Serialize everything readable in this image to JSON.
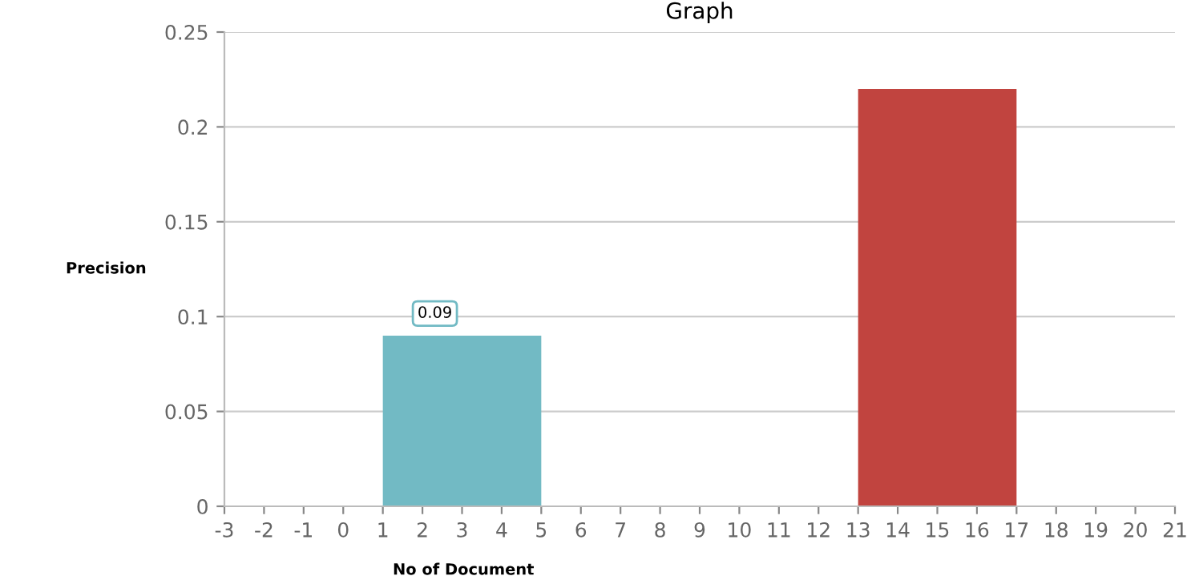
{
  "chart_data": {
    "type": "histogram",
    "title": "Graph",
    "xlabel": "No of Document",
    "ylabel": "Precision",
    "bins": [
      1,
      5,
      9,
      13,
      17
    ],
    "values": [
      0.09,
      0,
      0,
      0.22
    ],
    "colors": [
      "#72bac4",
      "#72bac4",
      "#72bac4",
      "#c1443f"
    ],
    "xlim": [
      -3,
      21
    ],
    "xticks": [
      -3,
      -2,
      -1,
      0,
      1,
      2,
      3,
      4,
      5,
      6,
      7,
      8,
      9,
      10,
      11,
      12,
      13,
      14,
      15,
      16,
      17,
      18,
      19,
      20,
      21
    ],
    "ylim": [
      0,
      0.25
    ],
    "yticks": [
      0,
      0.05,
      0.1,
      0.15,
      0.2,
      0.25
    ],
    "grid": "y",
    "legend": false,
    "annotations": [
      {
        "text": "0.09",
        "x": 3,
        "y": 0.09
      }
    ]
  }
}
